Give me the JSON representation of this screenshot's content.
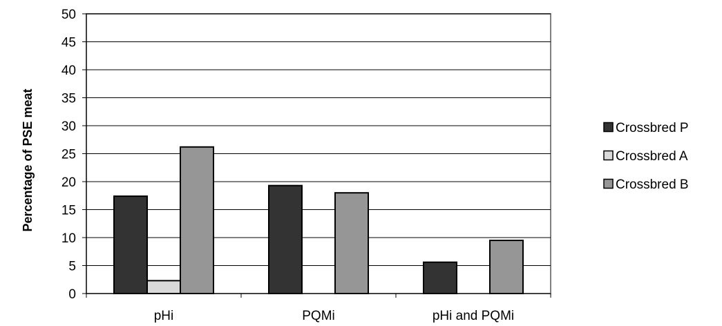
{
  "chart_data": {
    "type": "bar",
    "title": "",
    "xlabel": "",
    "ylabel": "Percentage of PSE meat",
    "categories": [
      "pHi",
      "PQMi",
      "pHi and PQMi"
    ],
    "series": [
      {
        "name": "Crossbred P",
        "color": "#333333",
        "values": [
          17.4,
          19.3,
          5.6
        ]
      },
      {
        "name": "Crossbred A",
        "color": "#d9d9d9",
        "values": [
          2.3,
          0,
          0
        ]
      },
      {
        "name": "Crossbred B",
        "color": "#969696",
        "values": [
          26.2,
          18.0,
          9.5
        ]
      }
    ],
    "ylim": [
      0,
      50
    ],
    "yticks": [
      "0",
      "5",
      "10",
      "15",
      "20",
      "25",
      "30",
      "35",
      "40",
      "45",
      "50"
    ],
    "grid": true,
    "legend_position": "right"
  }
}
